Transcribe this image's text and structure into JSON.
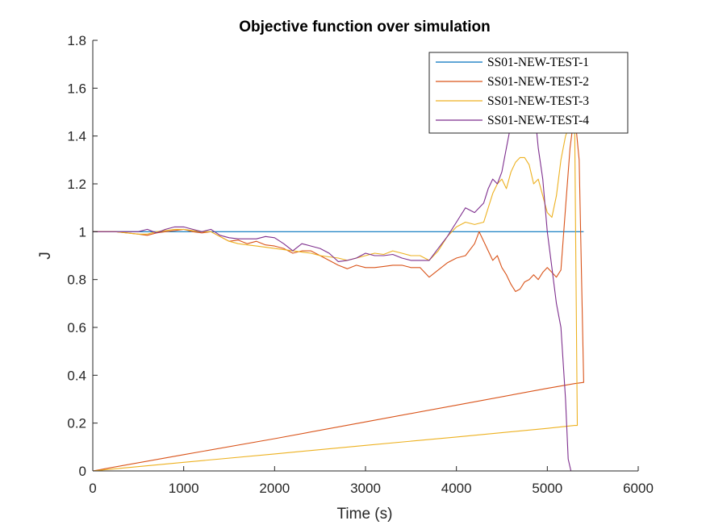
{
  "chart_data": {
    "type": "line",
    "title": "Objective function over simulation",
    "xlabel": "Time (s)",
    "ylabel": "J",
    "xlim": [
      0,
      6000
    ],
    "ylim": [
      0,
      1.8
    ],
    "xticks": [
      0,
      1000,
      2000,
      3000,
      4000,
      5000,
      6000
    ],
    "xtick_labels": [
      "0",
      "1000",
      "2000",
      "3000",
      "4000",
      "5000",
      "6000"
    ],
    "yticks": [
      0,
      0.2,
      0.4,
      0.6,
      0.8,
      1,
      1.2,
      1.4,
      1.6,
      1.8
    ],
    "ytick_labels": [
      "0",
      "0.2",
      "0.4",
      "0.6",
      "0.8",
      "1",
      "1.2",
      "1.4",
      "1.6",
      "1.8"
    ],
    "grid": false,
    "legend_position": "top-right",
    "series": [
      {
        "name": "SS01-NEW-TEST-1",
        "color": "#0072BD",
        "x": [
          0,
          5400
        ],
        "y": [
          1,
          1
        ]
      },
      {
        "name": "SS01-NEW-TEST-2",
        "color": "#D95319",
        "x": [
          0,
          250,
          500,
          600,
          700,
          800,
          900,
          1000,
          1100,
          1200,
          1300,
          1400,
          1500,
          1600,
          1700,
          1800,
          1900,
          2000,
          2100,
          2200,
          2300,
          2400,
          2500,
          2600,
          2700,
          2800,
          2900,
          3000,
          3100,
          3200,
          3300,
          3400,
          3500,
          3600,
          3700,
          3800,
          3900,
          4000,
          4100,
          4200,
          4250,
          4300,
          4350,
          4400,
          4450,
          4500,
          4550,
          4600,
          4650,
          4700,
          4750,
          4800,
          4850,
          4900,
          4950,
          5000,
          5050,
          5100,
          5150,
          5200,
          5250,
          5300,
          5350,
          5400,
          5400,
          5300,
          5000,
          4000,
          3000,
          2000,
          1000,
          0
        ],
        "y": [
          1,
          1,
          0.99,
          0.985,
          0.995,
          1.0,
          1.005,
          1.01,
          1.0,
          0.995,
          1.0,
          0.98,
          0.96,
          0.965,
          0.95,
          0.96,
          0.945,
          0.94,
          0.93,
          0.91,
          0.92,
          0.92,
          0.9,
          0.88,
          0.86,
          0.845,
          0.86,
          0.85,
          0.85,
          0.855,
          0.86,
          0.86,
          0.85,
          0.85,
          0.81,
          0.84,
          0.87,
          0.89,
          0.9,
          0.95,
          1.0,
          0.96,
          0.92,
          0.88,
          0.9,
          0.85,
          0.82,
          0.78,
          0.75,
          0.76,
          0.79,
          0.8,
          0.82,
          0.8,
          0.83,
          0.85,
          0.83,
          0.81,
          0.84,
          1.1,
          1.35,
          1.5,
          1.3,
          0.37,
          0.37,
          0.365,
          0.345,
          0.275,
          0.205,
          0.135,
          0.068,
          0
        ]
      },
      {
        "name": "SS01-NEW-TEST-3",
        "color": "#EDB120",
        "x": [
          0,
          250,
          500,
          600,
          700,
          800,
          900,
          1000,
          1100,
          1200,
          1300,
          1400,
          1500,
          1600,
          1700,
          1800,
          1900,
          2000,
          2100,
          2200,
          2300,
          2400,
          2500,
          2600,
          2700,
          2800,
          2900,
          3000,
          3100,
          3200,
          3300,
          3400,
          3500,
          3600,
          3700,
          3800,
          3900,
          4000,
          4100,
          4200,
          4300,
          4350,
          4400,
          4450,
          4500,
          4550,
          4600,
          4650,
          4700,
          4750,
          4800,
          4850,
          4900,
          4950,
          5000,
          5050,
          5100,
          5150,
          5200,
          5250,
          5300,
          5330,
          5300,
          5000,
          4000,
          3000,
          2000,
          1000,
          0
        ],
        "y": [
          1,
          1,
          0.99,
          0.99,
          1.0,
          1.005,
          1.01,
          1.01,
          1.005,
          1.0,
          1.0,
          0.98,
          0.96,
          0.95,
          0.945,
          0.94,
          0.935,
          0.93,
          0.925,
          0.92,
          0.915,
          0.91,
          0.9,
          0.895,
          0.89,
          0.88,
          0.89,
          0.9,
          0.91,
          0.905,
          0.92,
          0.91,
          0.9,
          0.9,
          0.88,
          0.92,
          0.98,
          1.02,
          1.04,
          1.03,
          1.04,
          1.1,
          1.16,
          1.2,
          1.22,
          1.18,
          1.25,
          1.29,
          1.31,
          1.31,
          1.28,
          1.2,
          1.22,
          1.15,
          1.08,
          1.06,
          1.15,
          1.3,
          1.4,
          1.45,
          1.5,
          0.19,
          0.19,
          0.178,
          0.142,
          0.107,
          0.071,
          0.036,
          0
        ]
      },
      {
        "name": "SS01-NEW-TEST-4",
        "color": "#7E2F8E",
        "x": [
          0,
          250,
          500,
          600,
          700,
          800,
          900,
          1000,
          1100,
          1200,
          1300,
          1400,
          1500,
          1600,
          1700,
          1800,
          1900,
          2000,
          2100,
          2200,
          2300,
          2400,
          2500,
          2600,
          2700,
          2800,
          2900,
          3000,
          3100,
          3200,
          3300,
          3400,
          3500,
          3600,
          3700,
          3800,
          3900,
          4000,
          4100,
          4200,
          4300,
          4350,
          4400,
          4450,
          4500,
          4550,
          4600,
          4650,
          4700,
          4750,
          4800,
          4850,
          4900,
          4950,
          5000,
          5050,
          5100,
          5150,
          5200,
          5230,
          5260,
          5270,
          5000,
          4000,
          3000,
          2000,
          1000,
          0
        ],
        "y": [
          1,
          1,
          1.0,
          1.01,
          0.995,
          1.01,
          1.02,
          1.02,
          1.01,
          1.0,
          1.01,
          0.985,
          0.975,
          0.97,
          0.97,
          0.97,
          0.98,
          0.975,
          0.95,
          0.92,
          0.95,
          0.94,
          0.93,
          0.91,
          0.875,
          0.88,
          0.89,
          0.91,
          0.9,
          0.9,
          0.905,
          0.89,
          0.88,
          0.88,
          0.88,
          0.93,
          0.98,
          1.04,
          1.1,
          1.08,
          1.12,
          1.18,
          1.22,
          1.2,
          1.25,
          1.35,
          1.45,
          1.55,
          1.65,
          1.7,
          1.6,
          1.55,
          1.35,
          1.22,
          1.0,
          0.85,
          0.7,
          0.6,
          0.3,
          0.05,
          0.0,
          0,
          0,
          0,
          0,
          0,
          0,
          0
        ]
      }
    ]
  }
}
